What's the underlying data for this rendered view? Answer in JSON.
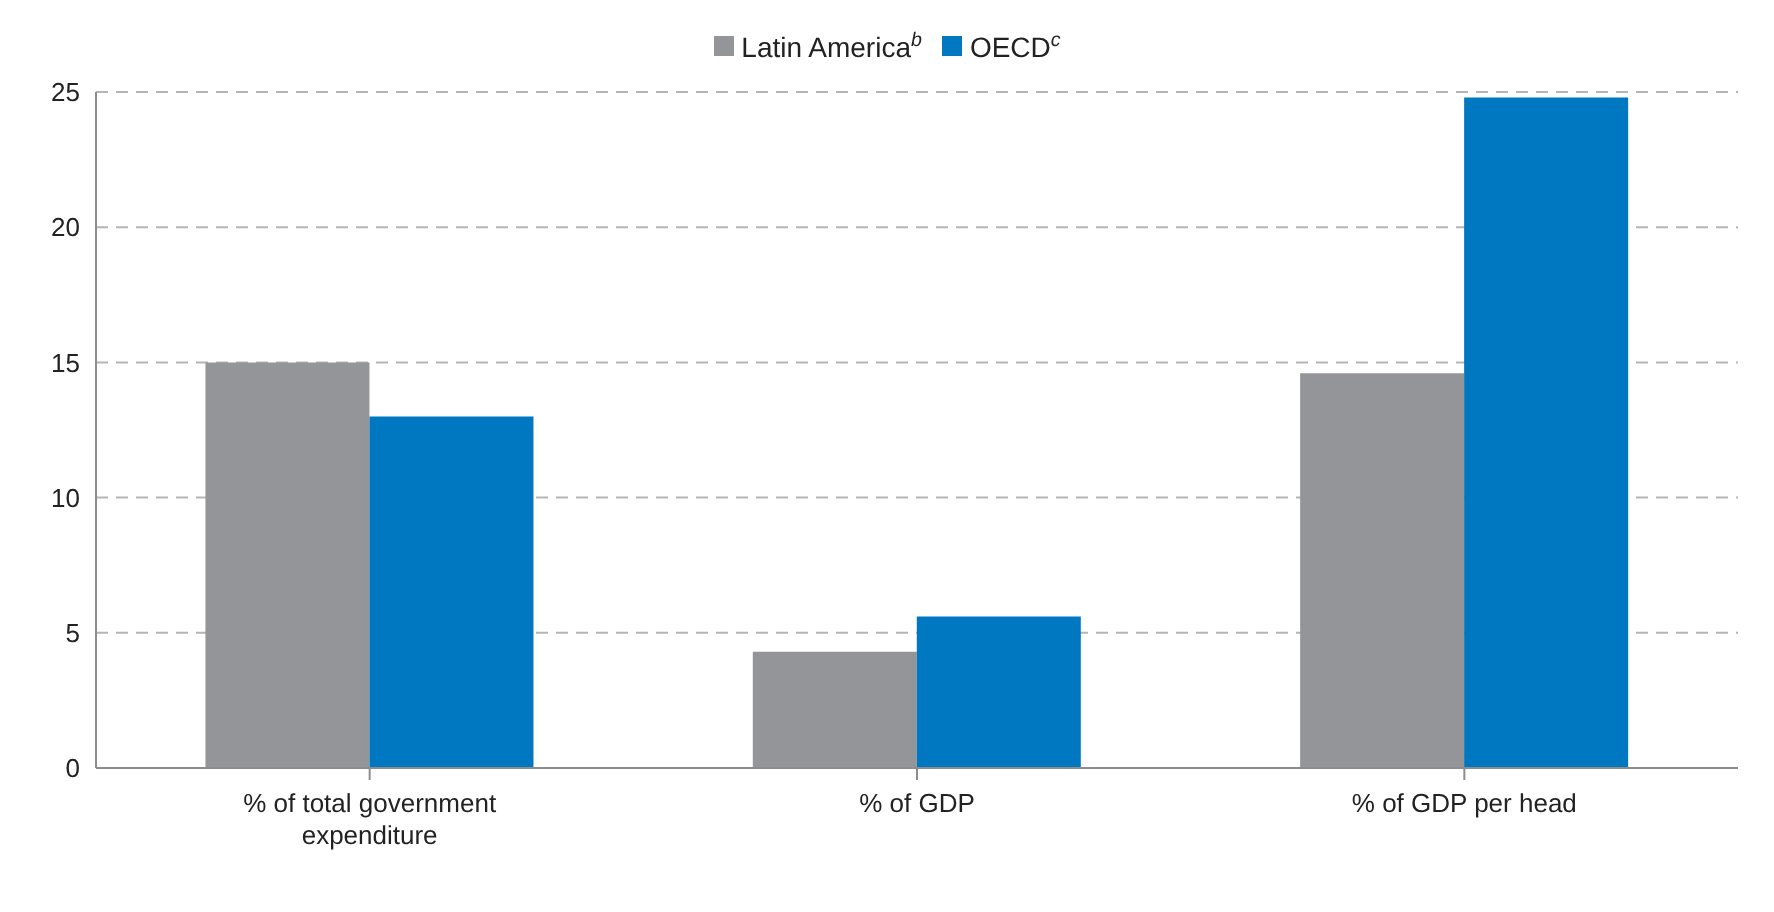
{
  "chart_data": {
    "type": "bar",
    "categories": [
      "% of total government expenditure",
      "% of GDP",
      "% of GDP per head"
    ],
    "series": [
      {
        "name": "Latin America$^{b}$",
        "color": "#939598",
        "values": [
          15.0,
          4.3,
          14.6
        ]
      },
      {
        "name": "OECD$^{c}$",
        "color": "#0077c1",
        "values": [
          13.0,
          5.6,
          24.8
        ]
      }
    ],
    "ylim": [
      0,
      25
    ],
    "yticks": [
      0,
      5,
      10,
      15,
      20,
      25
    ],
    "grid": "y",
    "legend": "top"
  }
}
